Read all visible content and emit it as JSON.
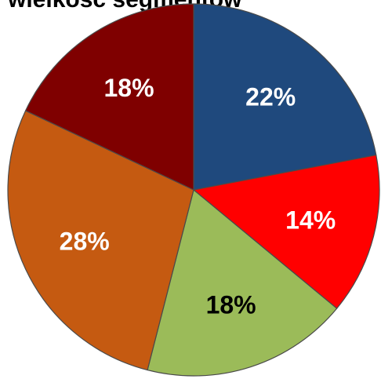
{
  "chart_data": {
    "type": "pie",
    "title": "wielkość segmentów",
    "slices": [
      {
        "label": "22%",
        "value": 22,
        "color": "#1f497d",
        "label_color": "#ffffff"
      },
      {
        "label": "14%",
        "value": 14,
        "color": "#ff0000",
        "label_color": "#ffffff"
      },
      {
        "label": "18%",
        "value": 18,
        "color": "#9bbb59",
        "label_color": "#000000"
      },
      {
        "label": "28%",
        "value": 28,
        "color": "#c55a11",
        "label_color": "#ffffff"
      },
      {
        "label": "18%",
        "value": 18,
        "color": "#7f0000",
        "label_color": "#ffffff"
      }
    ],
    "start_angle_deg": 0,
    "direction": "clockwise",
    "legend": "none"
  }
}
